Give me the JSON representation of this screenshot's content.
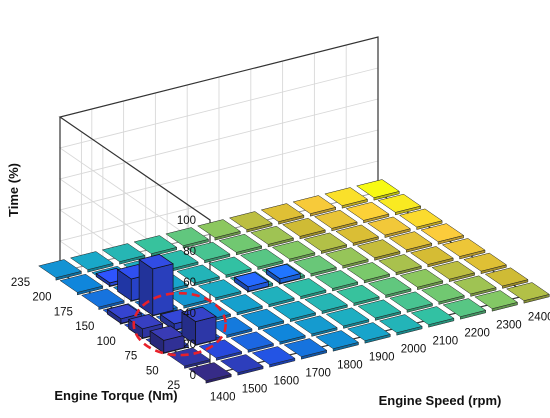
{
  "chart_data": {
    "type": "bar3d",
    "xlabel": "Engine Speed (rpm)",
    "ylabel": "Engine Torque (Nm)",
    "zlabel": "Time (%)",
    "x_ticks": [
      "1400",
      "1500",
      "1600",
      "1700",
      "1800",
      "1900",
      "2000",
      "2100",
      "2200",
      "2300",
      "2400"
    ],
    "y_ticks": [
      "25",
      "50",
      "75",
      "100",
      "150",
      "175",
      "200",
      "235"
    ],
    "z_ticks": [
      "0",
      "20",
      "40",
      "60",
      "80",
      "100"
    ],
    "zlim": [
      0,
      100
    ],
    "grid": true,
    "colormap": "parula",
    "bars": [
      {
        "speed": "1500",
        "torque": "150",
        "value": 30
      },
      {
        "speed": "1500",
        "torque": "175",
        "value": 14
      },
      {
        "speed": "1500",
        "torque": "200",
        "value": 2
      },
      {
        "speed": "1400",
        "torque": "75",
        "value": 8
      },
      {
        "speed": "1400",
        "torque": "100",
        "value": 6
      },
      {
        "speed": "1500",
        "torque": "75",
        "value": 15
      },
      {
        "speed": "1500",
        "torque": "100",
        "value": 4
      },
      {
        "speed": "1400",
        "torque": "150",
        "value": 3
      },
      {
        "speed": "1800",
        "torque": "150",
        "value": 3
      },
      {
        "speed": "1900",
        "torque": "150",
        "value": 3
      }
    ],
    "annotations": [
      {
        "type": "dashed-ellipse",
        "color": "#e8202a",
        "around": "low-torque, low-speed bars"
      }
    ]
  }
}
